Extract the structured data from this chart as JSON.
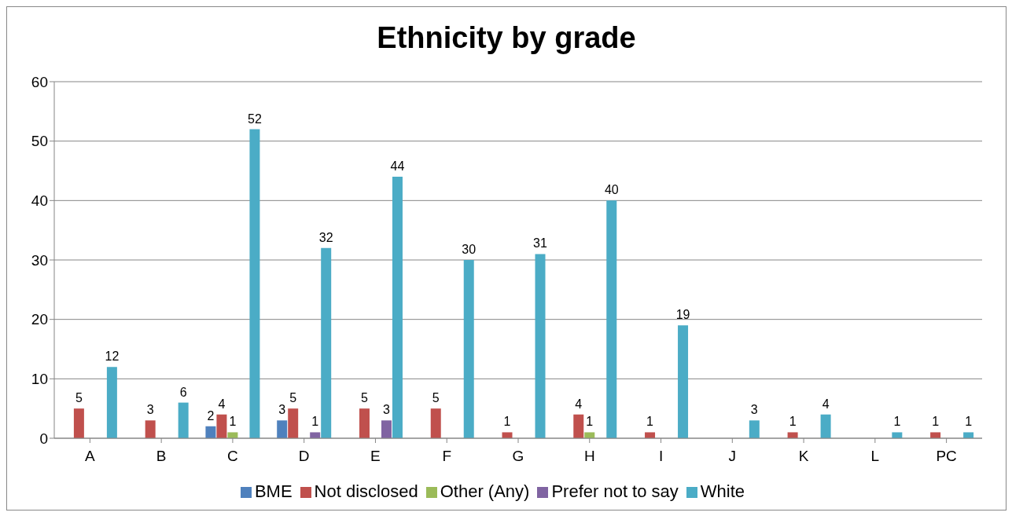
{
  "chart_data": {
    "type": "bar",
    "title": "Ethnicity by grade",
    "categories": [
      "A",
      "B",
      "C",
      "D",
      "E",
      "F",
      "G",
      "H",
      "I",
      "J",
      "K",
      "L",
      "PC"
    ],
    "series": [
      {
        "name": "BME",
        "color": "#4f81bd",
        "values": [
          0,
          0,
          2,
          3,
          0,
          0,
          0,
          0,
          0,
          0,
          0,
          0,
          0
        ],
        "value_labels": [
          null,
          null,
          "2",
          "3",
          null,
          null,
          null,
          null,
          null,
          null,
          null,
          null,
          null
        ]
      },
      {
        "name": "Not disclosed",
        "color": "#c0504d",
        "values": [
          5,
          3,
          4,
          5,
          5,
          5,
          1,
          4,
          1,
          0,
          1,
          0,
          1
        ],
        "value_labels": [
          "5",
          "3",
          "4",
          "5",
          "5",
          "5",
          "1",
          "4",
          "1",
          null,
          "1",
          null,
          "1"
        ]
      },
      {
        "name": "Other (Any)",
        "color": "#9bbb59",
        "values": [
          0,
          0,
          1,
          0,
          0,
          0,
          0,
          1,
          0,
          0,
          0,
          0,
          0
        ],
        "value_labels": [
          null,
          null,
          "1",
          null,
          null,
          null,
          null,
          "1",
          null,
          null,
          null,
          null,
          null
        ]
      },
      {
        "name": "Prefer not to say",
        "color": "#8064a2",
        "values": [
          0,
          0,
          0,
          1,
          3,
          0,
          0,
          0,
          0,
          0,
          0,
          0,
          0
        ],
        "value_labels": [
          null,
          null,
          null,
          "1",
          "3",
          null,
          null,
          null,
          null,
          null,
          null,
          null,
          null
        ]
      },
      {
        "name": "White",
        "color": "#4bacc6",
        "values": [
          12,
          6,
          52,
          32,
          44,
          30,
          31,
          40,
          19,
          3,
          4,
          1,
          1
        ],
        "value_labels": [
          "12",
          "6",
          "52",
          "32",
          "44",
          "30",
          "31",
          "40",
          "19",
          "3",
          "4",
          "1",
          "1"
        ]
      }
    ],
    "ylim": [
      0,
      60
    ],
    "yticks": [
      0,
      10,
      20,
      30,
      40,
      50,
      60
    ],
    "grid": "y",
    "legend": "bottom"
  }
}
